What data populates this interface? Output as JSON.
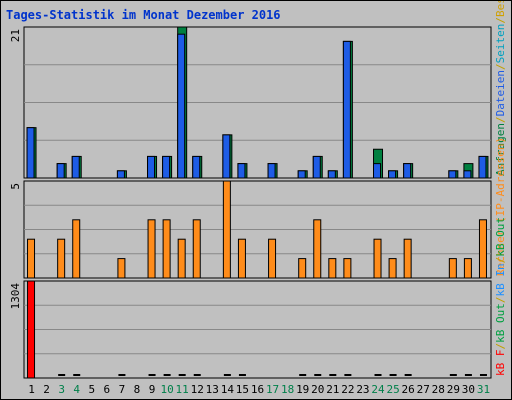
{
  "chart_data": {
    "type": "bar",
    "title": "Tages-Statistik im Monat Dezember 2016",
    "x": [
      "1",
      "2",
      "3",
      "4",
      "5",
      "6",
      "7",
      "8",
      "9",
      "10",
      "11",
      "12",
      "13",
      "14",
      "15",
      "16",
      "17",
      "18",
      "19",
      "20",
      "21",
      "22",
      "23",
      "24",
      "25",
      "26",
      "27",
      "28",
      "29",
      "30",
      "31"
    ],
    "weekend_days": [
      3,
      4,
      10,
      11,
      17,
      18,
      24,
      25,
      31
    ],
    "colors": {
      "anfragen": "#008040",
      "dateien": "#1e5ce6",
      "rechner": "#ff8c1a",
      "kb_in": "#1e90ff",
      "kb_out": "#00a040",
      "kb_f": "#ff0000",
      "weekend": "#00804a",
      "title": "#0033cc",
      "label_blue": "#0044cc",
      "label_green": "#008040",
      "panel_bg": "#c0c0c0",
      "grid": "#888888"
    },
    "panels": [
      {
        "name": "anfragen-dateien",
        "ymax_label": "21",
        "ymax": 21,
        "legend": [
          {
            "text": "Anfragen",
            "color": "#008040"
          },
          {
            "text": "/",
            "color": "#c0a000"
          },
          {
            "text": "Dateien",
            "color": "#1e5ce6"
          },
          {
            "text": "/",
            "color": "#c0a000"
          },
          {
            "text": "Seiten",
            "color": "#00a0c0"
          },
          {
            "text": "/",
            "color": "#c0a000"
          },
          {
            "text": "Besuche",
            "color": "#d0a000"
          }
        ],
        "series": [
          {
            "key": "anfragen",
            "values": [
              7,
              0,
              2,
              3,
              0,
              0,
              1,
              0,
              3,
              3,
              21,
              3,
              0,
              6,
              2,
              0,
              2,
              0,
              1,
              3,
              1,
              19,
              0,
              4,
              1,
              2,
              0,
              0,
              1,
              2,
              3
            ]
          },
          {
            "key": "dateien",
            "values": [
              7,
              0,
              2,
              3,
              0,
              0,
              1,
              0,
              3,
              3,
              20,
              3,
              0,
              6,
              2,
              0,
              2,
              0,
              1,
              3,
              1,
              19,
              0,
              2,
              1,
              2,
              0,
              0,
              1,
              1,
              3
            ]
          }
        ]
      },
      {
        "name": "rechner",
        "ymax_label": "5",
        "ymax": 5,
        "legend": [
          {
            "text": "Rechner (IP-Adressen)",
            "color": "#ff8c1a"
          }
        ],
        "series": [
          {
            "key": "rechner",
            "values": [
              2,
              0,
              2,
              3,
              0,
              0,
              1,
              0,
              3,
              3,
              2,
              3,
              0,
              5,
              2,
              0,
              2,
              0,
              1,
              3,
              1,
              1,
              0,
              2,
              1,
              2,
              0,
              0,
              1,
              1,
              3
            ]
          }
        ]
      },
      {
        "name": "kbytes",
        "ymax_label": "1304",
        "ymax": 1304,
        "legend": [
          {
            "text": "kB F",
            "color": "#ff0000"
          },
          {
            "text": "/",
            "color": "#c0a000"
          },
          {
            "text": "kB Out",
            "color": "#00a040"
          },
          {
            "text": "/",
            "color": "#c0a000"
          },
          {
            "text": "kB In",
            "color": "#1e90ff"
          },
          {
            "text": "/",
            "color": "#c0a000"
          },
          {
            "text": "kB Out",
            "color": "#00a040"
          }
        ],
        "series": [
          {
            "key": "kb_f",
            "values": [
              1304,
              0,
              0,
              0,
              0,
              0,
              0,
              0,
              0,
              0,
              0,
              0,
              0,
              0,
              0,
              0,
              0,
              0,
              0,
              0,
              0,
              0,
              0,
              0,
              0,
              0,
              0,
              0,
              0,
              0,
              0
            ]
          },
          {
            "key": "kb_low",
            "values": [
              0,
              0,
              1,
              1,
              0,
              0,
              1,
              0,
              1,
              1,
              1,
              1,
              0,
              1,
              1,
              0,
              0,
              0,
              1,
              1,
              1,
              1,
              0,
              1,
              1,
              1,
              0,
              0,
              1,
              1,
              1
            ]
          }
        ]
      }
    ]
  }
}
